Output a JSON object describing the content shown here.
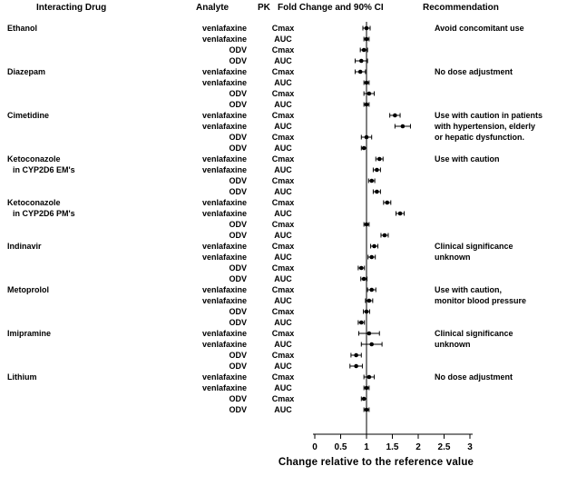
{
  "headers": {
    "drug": "Interacting Drug",
    "analyte": "Analyte",
    "pk": "PK",
    "fold_change": "Fold Change and 90% CI",
    "recommendation": "Recommendation"
  },
  "chart_data": {
    "type": "forest",
    "xlabel": "Change relative to the reference value",
    "xlim": [
      0,
      3
    ],
    "x_ticks": [
      0,
      0.5,
      1,
      1.5,
      2,
      2.5,
      3
    ],
    "x_tick_labels": [
      "0",
      "0.5",
      "1",
      "1.5",
      "2",
      "2.5",
      "3"
    ],
    "reference_line": 1,
    "point_color": "#000000",
    "groups": [
      {
        "drug": [
          "Ethanol"
        ],
        "recommendation": [
          "Avoid concomitant use"
        ],
        "rows": [
          {
            "analyte": "venlafaxine",
            "pk": "Cmax",
            "est": 1.0,
            "lo": 0.93,
            "hi": 1.07
          },
          {
            "analyte": "venlafaxine",
            "pk": "AUC",
            "est": 1.0,
            "lo": 0.95,
            "hi": 1.05
          },
          {
            "analyte": "ODV",
            "pk": "Cmax",
            "est": 0.95,
            "lo": 0.88,
            "hi": 1.02
          },
          {
            "analyte": "ODV",
            "pk": "AUC",
            "est": 0.9,
            "lo": 0.78,
            "hi": 1.02
          }
        ]
      },
      {
        "drug": [
          "Diazepam"
        ],
        "recommendation": [
          "No dose adjustment"
        ],
        "rows": [
          {
            "analyte": "venlafaxine",
            "pk": "Cmax",
            "est": 0.88,
            "lo": 0.78,
            "hi": 0.98
          },
          {
            "analyte": "venlafaxine",
            "pk": "AUC",
            "est": 1.0,
            "lo": 0.95,
            "hi": 1.05
          },
          {
            "analyte": "ODV",
            "pk": "Cmax",
            "est": 1.05,
            "lo": 0.95,
            "hi": 1.15
          },
          {
            "analyte": "ODV",
            "pk": "AUC",
            "est": 1.0,
            "lo": 0.95,
            "hi": 1.05
          }
        ]
      },
      {
        "drug": [
          "Cimetidine"
        ],
        "recommendation": [
          "Use with caution in patients",
          "with hypertension, elderly",
          "or hepatic dysfunction."
        ],
        "rows": [
          {
            "analyte": "venlafaxine",
            "pk": "Cmax",
            "est": 1.55,
            "lo": 1.45,
            "hi": 1.65
          },
          {
            "analyte": "venlafaxine",
            "pk": "AUC",
            "est": 1.7,
            "lo": 1.55,
            "hi": 1.85
          },
          {
            "analyte": "ODV",
            "pk": "Cmax",
            "est": 1.0,
            "lo": 0.9,
            "hi": 1.1
          },
          {
            "analyte": "ODV",
            "pk": "AUC",
            "est": 0.95,
            "lo": 0.9,
            "hi": 1.0
          }
        ]
      },
      {
        "drug": [
          "Ketoconazole",
          "in CYP2D6 EM's"
        ],
        "recommendation": [
          "Use with caution"
        ],
        "rows": [
          {
            "analyte": "venlafaxine",
            "pk": "Cmax",
            "est": 1.25,
            "lo": 1.18,
            "hi": 1.32
          },
          {
            "analyte": "venlafaxine",
            "pk": "AUC",
            "est": 1.2,
            "lo": 1.13,
            "hi": 1.27
          },
          {
            "analyte": "ODV",
            "pk": "Cmax",
            "est": 1.1,
            "lo": 1.04,
            "hi": 1.16
          },
          {
            "analyte": "ODV",
            "pk": "AUC",
            "est": 1.2,
            "lo": 1.13,
            "hi": 1.27
          }
        ]
      },
      {
        "drug": [
          "Ketoconazole",
          "in CYP2D6 PM's"
        ],
        "recommendation": [],
        "rows": [
          {
            "analyte": "venlafaxine",
            "pk": "Cmax",
            "est": 1.4,
            "lo": 1.33,
            "hi": 1.47
          },
          {
            "analyte": "venlafaxine",
            "pk": "AUC",
            "est": 1.65,
            "lo": 1.57,
            "hi": 1.73
          },
          {
            "analyte": "ODV",
            "pk": "Cmax",
            "est": 1.0,
            "lo": 0.95,
            "hi": 1.05
          },
          {
            "analyte": "ODV",
            "pk": "AUC",
            "est": 1.35,
            "lo": 1.28,
            "hi": 1.42
          }
        ]
      },
      {
        "drug": [
          "Indinavir"
        ],
        "recommendation": [
          "Clinical significance",
          "unknown"
        ],
        "rows": [
          {
            "analyte": "venlafaxine",
            "pk": "Cmax",
            "est": 1.15,
            "lo": 1.08,
            "hi": 1.22
          },
          {
            "analyte": "venlafaxine",
            "pk": "AUC",
            "est": 1.1,
            "lo": 1.03,
            "hi": 1.17
          },
          {
            "analyte": "ODV",
            "pk": "Cmax",
            "est": 0.9,
            "lo": 0.84,
            "hi": 0.96
          },
          {
            "analyte": "ODV",
            "pk": "AUC",
            "est": 0.95,
            "lo": 0.89,
            "hi": 1.01
          }
        ]
      },
      {
        "drug": [
          "Metoprolol"
        ],
        "recommendation": [
          "Use with caution,",
          "monitor blood pressure"
        ],
        "rows": [
          {
            "analyte": "venlafaxine",
            "pk": "Cmax",
            "est": 1.1,
            "lo": 1.02,
            "hi": 1.18
          },
          {
            "analyte": "venlafaxine",
            "pk": "AUC",
            "est": 1.05,
            "lo": 0.98,
            "hi": 1.12
          },
          {
            "analyte": "ODV",
            "pk": "Cmax",
            "est": 1.0,
            "lo": 0.94,
            "hi": 1.06
          },
          {
            "analyte": "ODV",
            "pk": "AUC",
            "est": 0.9,
            "lo": 0.84,
            "hi": 0.96
          }
        ]
      },
      {
        "drug": [
          "Imipramine"
        ],
        "recommendation": [
          "Clinical significance",
          "unknown"
        ],
        "rows": [
          {
            "analyte": "venlafaxine",
            "pk": "Cmax",
            "est": 1.05,
            "lo": 0.85,
            "hi": 1.25
          },
          {
            "analyte": "venlafaxine",
            "pk": "AUC",
            "est": 1.1,
            "lo": 0.9,
            "hi": 1.3
          },
          {
            "analyte": "ODV",
            "pk": "Cmax",
            "est": 0.8,
            "lo": 0.7,
            "hi": 0.9
          },
          {
            "analyte": "ODV",
            "pk": "AUC",
            "est": 0.8,
            "lo": 0.68,
            "hi": 0.92
          }
        ]
      },
      {
        "drug": [
          "Lithium"
        ],
        "recommendation": [
          "No dose adjustment"
        ],
        "rows": [
          {
            "analyte": "venlafaxine",
            "pk": "Cmax",
            "est": 1.05,
            "lo": 0.95,
            "hi": 1.15
          },
          {
            "analyte": "venlafaxine",
            "pk": "AUC",
            "est": 1.0,
            "lo": 0.95,
            "hi": 1.05
          },
          {
            "analyte": "ODV",
            "pk": "Cmax",
            "est": 0.95,
            "lo": 0.9,
            "hi": 1.0
          },
          {
            "analyte": "ODV",
            "pk": "AUC",
            "est": 1.0,
            "lo": 0.95,
            "hi": 1.05
          }
        ]
      }
    ]
  }
}
